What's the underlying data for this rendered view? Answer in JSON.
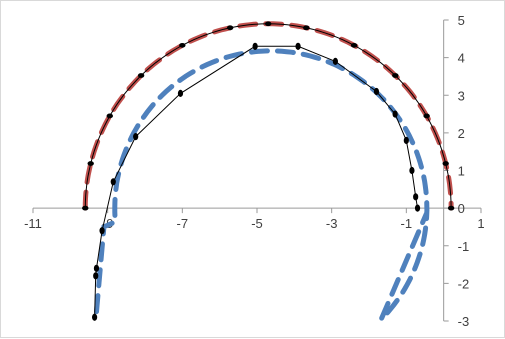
{
  "chart_data": {
    "type": "scatter",
    "title": "",
    "xlabel": "",
    "ylabel": "",
    "xlim": [
      -11,
      1
    ],
    "ylim": [
      -3,
      5
    ],
    "x_ticks": [
      -11,
      -9,
      -7,
      -5,
      -3,
      -1,
      1
    ],
    "x_tick_labels": [
      "-11",
      "-9",
      "-7",
      "-5",
      "-3",
      "-1",
      "1"
    ],
    "y_ticks": [
      -3,
      -2,
      -1,
      0,
      1,
      2,
      3,
      4,
      5
    ],
    "y_tick_labels": [
      "-3",
      "-2",
      "-1",
      "0",
      "1",
      "2",
      "3",
      "4",
      "5"
    ],
    "grid": false,
    "legend": "none",
    "series": [
      {
        "color": "#c0504d",
        "style": "dashed",
        "shape": "circle",
        "center": [
          -4.7,
          0
        ],
        "radius": 4.9,
        "angle_range_deg": [
          0,
          180
        ]
      },
      {
        "color": "#4f81bd",
        "style": "dashed",
        "shape": "circle",
        "center": [
          -4.63,
          0
        ],
        "radius": 4.18,
        "angle_range_deg": [
          -45,
          180
        ],
        "tail_start": [
          -9.1,
          -0.5
        ],
        "tail_end": [
          -9.3,
          -2.75
        ]
      },
      {
        "color": "#000000",
        "style": "thin line with markers",
        "path_points": [
          [
            -9.35,
            -2.9
          ],
          [
            -9.32,
            -1.8
          ],
          [
            -9.3,
            -1.6
          ],
          [
            -9.15,
            -0.6
          ],
          [
            -8.85,
            0.7
          ],
          [
            -8.25,
            1.9
          ],
          [
            -7.05,
            3.05
          ],
          [
            -5.05,
            4.3
          ],
          [
            -3.9,
            4.3
          ],
          [
            -2.9,
            3.9
          ],
          [
            -1.8,
            3.1
          ],
          [
            -1.3,
            2.5
          ],
          [
            -1.0,
            1.8
          ],
          [
            -0.85,
            1.0
          ],
          [
            -0.75,
            0.3
          ],
          [
            -0.7,
            0.0
          ]
        ],
        "arc_center": [
          -4.7,
          0
        ],
        "arc_radius": 4.9,
        "arc_points_angle_deg": [
          180,
          166,
          150,
          134,
          118,
          102,
          90,
          78,
          62,
          46,
          30,
          14,
          0
        ]
      }
    ]
  }
}
